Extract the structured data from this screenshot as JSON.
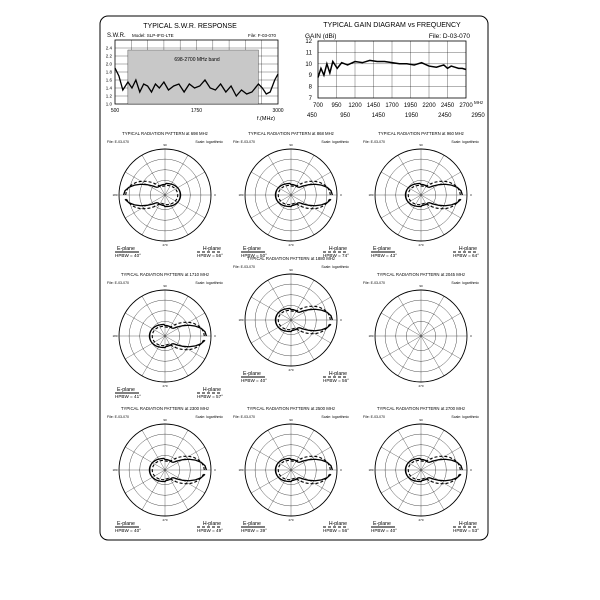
{
  "swr": {
    "title": "TYPICAL S.W.R. RESPONSE",
    "y_label": "S.W.R.",
    "model": "Model: SLP-IFG-LTE",
    "file": "File: F-03-070",
    "band_label": "698-2700 MHz band",
    "x_label": "f.(MHz)",
    "y_ticks": [
      "2.4",
      "2.2",
      "2.0",
      "1.8",
      "1.6",
      "1.4",
      "1.2",
      "1.0"
    ],
    "x_ticks": [
      "500",
      "1750",
      "3000"
    ]
  },
  "gain": {
    "title": "TYPICAL GAIN DIAGRAM vs FREQUENCY",
    "y_label": "GAIN (dBi)",
    "file": "File:  D-03-070",
    "y_ticks": [
      "12",
      "11",
      "10",
      "9",
      "8",
      "7"
    ],
    "x_ticks_top": [
      "700",
      "950",
      "1200",
      "1450",
      "1700",
      "1950",
      "2200",
      "2450",
      "2700"
    ],
    "x_ticks_bottom": [
      "450",
      "950",
      "1450",
      "1950",
      "2450",
      "2950"
    ],
    "x_unit": "MHz"
  },
  "patterns": [
    {
      "title": "TYPICAL RADIATION PATTERN at 698 MHz",
      "file": "File: E-03-070",
      "scale": "Scale: logarithmic",
      "e_label": "E-plane",
      "h_label": "H-plane",
      "e_hpbw": "HPBW = 40°",
      "h_hpbw": "HPBW = 56°"
    },
    {
      "title": "TYPICAL RADIATION PATTERN at 868 MHz",
      "file": "File: E-03-070",
      "scale": "Scale: logarithmic",
      "e_label": "E-plane",
      "h_label": "H-plane",
      "e_hpbw": "HPBW = 50°",
      "h_hpbw": "HPBW = 74°"
    },
    {
      "title": "TYPICAL RADIATION PATTERN at 960 MHz",
      "file": "File: E-03-070",
      "scale": "Scale: logarithmic",
      "e_label": "E-plane",
      "h_label": "H-plane",
      "e_hpbw": "HPBW = 43°",
      "h_hpbw": "HPBW = 64°"
    },
    {
      "title": "TYPICAL RADIATION PATTERN at 1710 MHz",
      "file": "File: E-03-070",
      "scale": "Scale: logarithmic",
      "e_label": "E-plane",
      "h_label": "H-plane",
      "e_hpbw": "HPBW = 41°",
      "h_hpbw": "HPBW = 57°"
    },
    {
      "title": "TYPICAL RADIATION PATTERN at 1880 MHz",
      "file": "File: E-03-070",
      "scale": "Scale: logarithmic",
      "e_label": "E-plane",
      "h_label": "H-plane",
      "e_hpbw": "HPBW = 40°",
      "h_hpbw": "HPBW = 56°"
    },
    {
      "title": "TYPICAL RADIATION PATTERN at 2045 MHz",
      "file": "File: E-03-070",
      "scale": "Scale: logarithmic",
      "e_label": "",
      "h_label": "",
      "e_hpbw": "",
      "h_hpbw": ""
    },
    {
      "title": "TYPICAL RADIATION PATTERN at 2300 MHz",
      "file": "File: E-03-070",
      "scale": "Scale: logarithmic",
      "e_label": "E-plane",
      "h_label": "H-plane",
      "e_hpbw": "HPBW = 40°",
      "h_hpbw": "HPBW = 49°"
    },
    {
      "title": "TYPICAL RADIATION PATTERN at 2500 MHz",
      "file": "File: E-03-070",
      "scale": "Scale: logarithmic",
      "e_label": "E-plane",
      "h_label": "H-plane",
      "e_hpbw": "HPBW = 39°",
      "h_hpbw": "HPBW = 56°"
    },
    {
      "title": "TYPICAL RADIATION PATTERN at 2700 MHz",
      "file": "File: E-03-070",
      "scale": "Scale: logarithmic",
      "e_label": "E-plane",
      "h_label": "H-plane",
      "e_hpbw": "HPBW = 40°",
      "h_hpbw": "HPBW = 53°"
    }
  ],
  "chart_data": [
    {
      "type": "line",
      "title": "TYPICAL S.W.R. RESPONSE",
      "ylabel": "S.W.R.",
      "xlabel": "f.(MHz)",
      "xlim": [
        500,
        3000
      ],
      "ylim": [
        1.0,
        2.6
      ],
      "shaded_band": [
        698,
        2700
      ],
      "x": [
        500,
        560,
        620,
        698,
        760,
        820,
        880,
        940,
        1000,
        1060,
        1120,
        1180,
        1250,
        1320,
        1400,
        1480,
        1560,
        1640,
        1720,
        1800,
        1880,
        1960,
        2040,
        2120,
        2200,
        2280,
        2360,
        2440,
        2520,
        2600,
        2700,
        2760,
        2820,
        2880,
        2950,
        3000
      ],
      "values": [
        1.9,
        1.7,
        1.35,
        1.55,
        1.4,
        1.6,
        1.3,
        1.5,
        1.45,
        1.3,
        1.5,
        1.4,
        1.55,
        1.35,
        1.45,
        1.5,
        1.3,
        1.5,
        1.4,
        1.45,
        1.6,
        1.4,
        1.35,
        1.5,
        1.3,
        1.45,
        1.2,
        1.35,
        1.25,
        1.3,
        1.5,
        1.4,
        1.25,
        1.3,
        1.6,
        1.75
      ]
    },
    {
      "type": "line",
      "title": "TYPICAL GAIN DIAGRAM vs FREQUENCY",
      "ylabel": "GAIN (dBi)",
      "xlabel": "MHz",
      "xlim": [
        700,
        2700
      ],
      "ylim": [
        7,
        12
      ],
      "x": [
        700,
        740,
        780,
        820,
        860,
        900,
        960,
        1020,
        1100,
        1200,
        1300,
        1400,
        1500,
        1600,
        1700,
        1800,
        1900,
        2000,
        2100,
        2200,
        2300,
        2400,
        2450,
        2500,
        2550,
        2600,
        2650,
        2700
      ],
      "values": [
        8.8,
        9.6,
        9.0,
        10.0,
        9.2,
        10.2,
        9.6,
        10.1,
        9.9,
        10.2,
        10.1,
        10.3,
        10.2,
        10.2,
        10.1,
        10.0,
        10.0,
        9.9,
        10.1,
        9.8,
        9.7,
        9.9,
        9.6,
        9.8,
        9.7,
        9.6,
        9.6,
        9.5
      ]
    }
  ]
}
